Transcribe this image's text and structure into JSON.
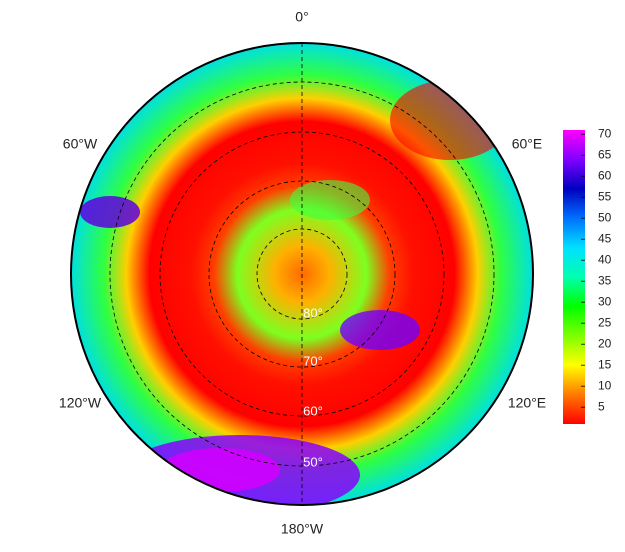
{
  "map": {
    "longitude_labels": [
      "0°",
      "60°E",
      "120°E",
      "180°W",
      "120°W",
      "60°W"
    ],
    "latitude_labels": [
      "80°",
      "70°",
      "60°",
      "50°"
    ],
    "colorbar": {
      "lim": [
        1,
        71
      ],
      "ticks": [
        5,
        10,
        15,
        20,
        25,
        30,
        35,
        40,
        45,
        50,
        55,
        60,
        65,
        70
      ],
      "colors": [
        "#ff0000",
        "#ff7a00",
        "#ffff00",
        "#7dff00",
        "#00ff00",
        "#00ffb0",
        "#00e0ff",
        "#0070ff",
        "#0000c0",
        "#8000ff",
        "#ff00ff"
      ]
    }
  }
}
